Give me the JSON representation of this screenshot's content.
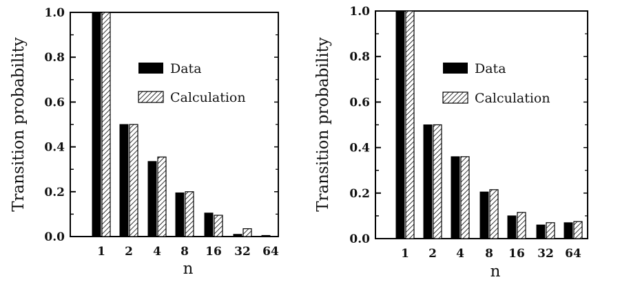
{
  "chart_data": [
    {
      "type": "bar",
      "title": "",
      "xlabel": "n",
      "ylabel": "Transition probability",
      "ylim": [
        0.0,
        1.0
      ],
      "yticks": [
        "0.0",
        "0.2",
        "0.4",
        "0.6",
        "0.8",
        "1.0"
      ],
      "categories": [
        "1",
        "2",
        "4",
        "8",
        "16",
        "32",
        "64"
      ],
      "legend_position": "top-right",
      "series": [
        {
          "name": "Data",
          "fill": "solid",
          "color": "#000000",
          "values": [
            1.0,
            0.5,
            0.335,
            0.195,
            0.105,
            0.01,
            0.005
          ]
        },
        {
          "name": "Calculation",
          "fill": "hatched",
          "color": "#000000",
          "values": [
            1.0,
            0.5,
            0.355,
            0.2,
            0.095,
            0.035,
            0.0
          ]
        }
      ]
    },
    {
      "type": "bar",
      "title": "",
      "xlabel": "n",
      "ylabel": "Transition probability",
      "ylim": [
        0.0,
        1.0
      ],
      "yticks": [
        "0.0",
        "0.2",
        "0.4",
        "0.6",
        "0.8",
        "1.0"
      ],
      "categories": [
        "1",
        "2",
        "4",
        "8",
        "16",
        "32",
        "64"
      ],
      "legend_position": "top-right",
      "series": [
        {
          "name": "Data",
          "fill": "solid",
          "color": "#000000",
          "values": [
            1.0,
            0.5,
            0.36,
            0.205,
            0.1,
            0.06,
            0.07
          ]
        },
        {
          "name": "Calculation",
          "fill": "hatched",
          "color": "#000000",
          "values": [
            1.0,
            0.5,
            0.36,
            0.215,
            0.115,
            0.07,
            0.075
          ]
        }
      ]
    }
  ]
}
